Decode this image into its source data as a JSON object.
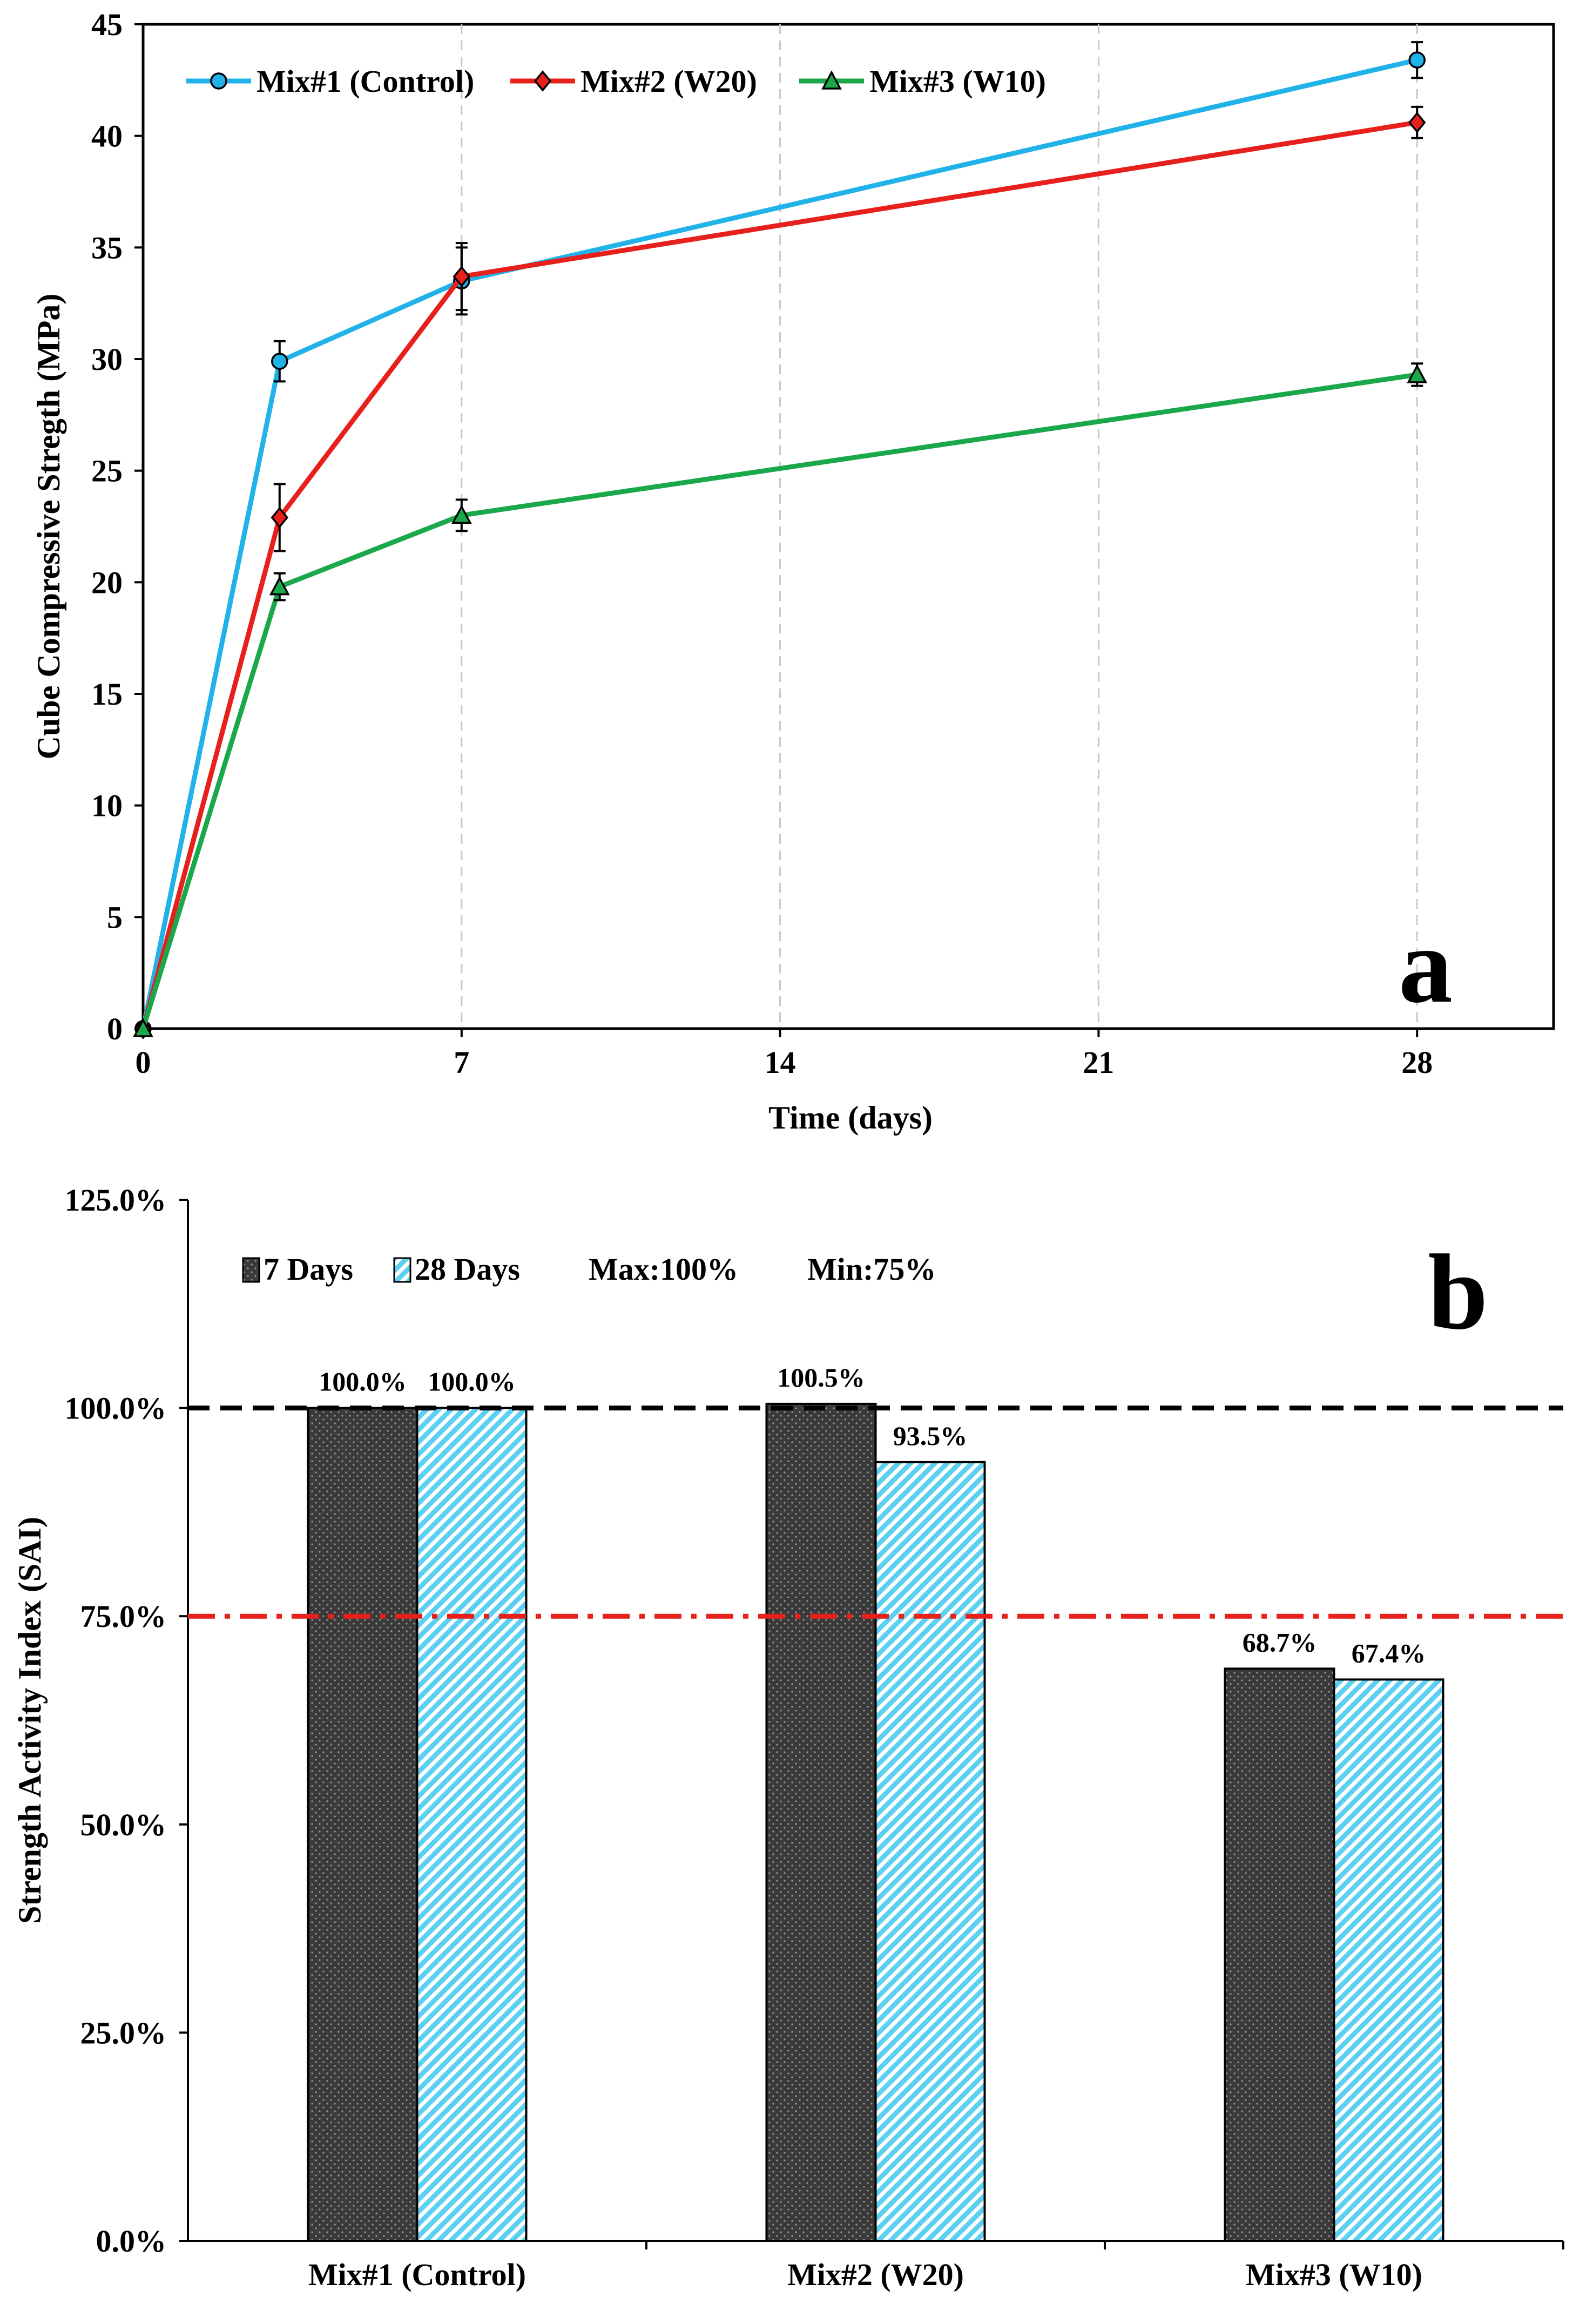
{
  "chart_data": [
    {
      "type": "line",
      "panel_label": "a",
      "xlabel": "Time (days)",
      "ylabel": "Cube Compressive Stregth (MPa)",
      "xlim": [
        0,
        31
      ],
      "ylim": [
        0,
        45
      ],
      "xticks": [
        0,
        7,
        14,
        21,
        28
      ],
      "yticks": [
        0,
        5,
        10,
        15,
        20,
        25,
        30,
        35,
        40,
        45
      ],
      "grid": "vertical dashed",
      "legend_position": "top-left",
      "series": [
        {
          "name": "Mix#1 (Control)",
          "color": "#20b2e8",
          "marker": "circle",
          "x": [
            0,
            3,
            7,
            28
          ],
          "y": [
            0,
            29.9,
            33.5,
            43.4
          ],
          "err": [
            0,
            0.9,
            1.5,
            0.8
          ]
        },
        {
          "name": "Mix#2 (W20)",
          "color": "#e8201c",
          "marker": "diamond",
          "x": [
            0,
            3,
            7,
            28
          ],
          "y": [
            0,
            22.9,
            33.7,
            40.6
          ],
          "err": [
            0,
            1.5,
            1.5,
            0.7
          ]
        },
        {
          "name": "Mix#3 (W10)",
          "color": "#1aa84a",
          "marker": "triangle",
          "x": [
            0,
            3,
            7,
            28
          ],
          "y": [
            0,
            19.8,
            23.0,
            29.3
          ],
          "err": [
            0,
            0.6,
            0.7,
            0.5
          ]
        }
      ]
    },
    {
      "type": "bar",
      "panel_label": "b",
      "ylabel": "Strength Activity Index (SAI)",
      "categories": [
        "Mix#1 (Control)",
        "Mix#2 (W20)",
        "Mix#3 (W10)"
      ],
      "ylim": [
        0,
        125
      ],
      "yticks": [
        0,
        25,
        50,
        75,
        100,
        125
      ],
      "ytick_labels": [
        "0.0%",
        "25.0%",
        "50.0%",
        "75.0%",
        "100.0%",
        "125.0%"
      ],
      "legend_position": "top-left",
      "series": [
        {
          "name": "7 Days",
          "color": "#3a3a3a",
          "values": [
            100.0,
            100.5,
            68.7
          ],
          "labels": [
            "100.0%",
            "100.5%",
            "68.7%"
          ]
        },
        {
          "name": "28 Days",
          "color": "#5cd0f0",
          "values": [
            100.0,
            93.5,
            67.4
          ],
          "labels": [
            "100.0%",
            "93.5%",
            "67.4%"
          ]
        }
      ],
      "reference_lines": [
        {
          "name": "Max:100%",
          "value": 100,
          "color": "#000000",
          "style": "dashed"
        },
        {
          "name": "Min:75%",
          "value": 75,
          "color": "#e8201c",
          "style": "dash-dot"
        }
      ]
    }
  ]
}
